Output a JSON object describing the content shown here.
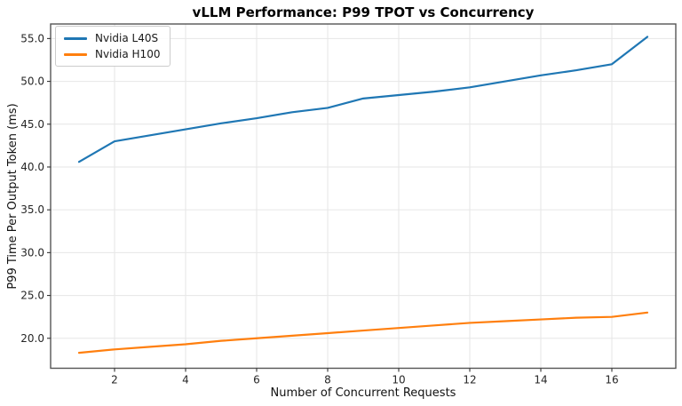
{
  "chart_data": {
    "type": "line",
    "title": "vLLM Performance: P99 TPOT vs Concurrency",
    "xlabel": "Number of Concurrent Requests",
    "ylabel": "P99 Time Per Output Token (ms)",
    "x": [
      1,
      2,
      3,
      4,
      5,
      6,
      7,
      8,
      9,
      10,
      11,
      12,
      13,
      14,
      15,
      16,
      17
    ],
    "series": [
      {
        "name": "Nvidia L40S",
        "color": "#1f77b4",
        "values": [
          40.6,
          43.0,
          43.7,
          44.4,
          45.1,
          45.7,
          46.4,
          46.9,
          48.0,
          48.4,
          48.8,
          49.3,
          50.0,
          50.7,
          51.3,
          52.0,
          55.2
        ]
      },
      {
        "name": "Nvidia H100",
        "color": "#ff7f0e",
        "values": [
          18.3,
          18.7,
          19.0,
          19.3,
          19.7,
          20.0,
          20.3,
          20.6,
          20.9,
          21.2,
          21.5,
          21.8,
          22.0,
          22.2,
          22.4,
          22.5,
          23.0
        ]
      }
    ],
    "xlim": [
      0.2,
      17.8
    ],
    "ylim": [
      16.5,
      56.7
    ],
    "xticks": [
      2,
      4,
      6,
      8,
      10,
      12,
      14,
      16
    ],
    "xtick_labels": [
      "2",
      "4",
      "6",
      "8",
      "10",
      "12",
      "14",
      "16"
    ],
    "yticks": [
      20,
      25,
      30,
      35,
      40,
      45,
      50,
      55
    ],
    "ytick_labels": [
      "20.0",
      "25.0",
      "30.0",
      "35.0",
      "40.0",
      "45.0",
      "50.0",
      "55.0"
    ],
    "grid": true,
    "legend_position": "upper-left"
  }
}
